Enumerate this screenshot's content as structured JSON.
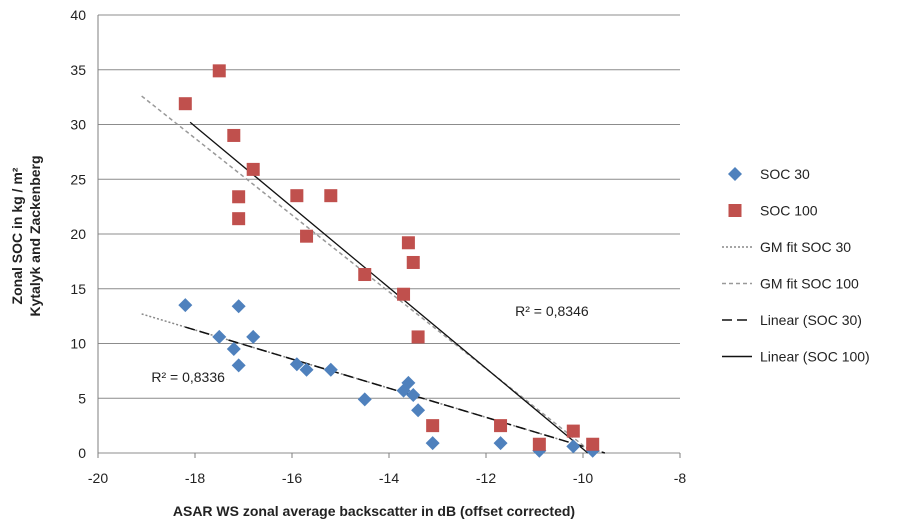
{
  "chart_data": {
    "type": "scatter",
    "title": "",
    "xlabel": "ASAR WS zonal average backscatter in dB (offset corrected)",
    "ylabel_lines": [
      "Zonal SOC in kg / m²",
      "Kytalyk and Zackenberg"
    ],
    "xlim": [
      -20,
      -8
    ],
    "ylim": [
      0,
      40
    ],
    "x_ticks": [
      -20,
      -18,
      -16,
      -14,
      -12,
      -10,
      -8
    ],
    "x_tick_labels": [
      "-20",
      "-18",
      "-16",
      "-14",
      "-12",
      "-10",
      "-8"
    ],
    "y_ticks": [
      0,
      5,
      10,
      15,
      20,
      25,
      30,
      35,
      40
    ],
    "y_tick_labels": [
      "0",
      "5",
      "10",
      "15",
      "20",
      "25",
      "30",
      "35",
      "40"
    ],
    "grid": "horizontal",
    "legend_position": "right",
    "series": [
      {
        "name": "SOC 30",
        "marker": "diamond",
        "color": "#4F81BD",
        "points": [
          [
            -18.2,
            13.5
          ],
          [
            -17.5,
            10.6
          ],
          [
            -17.2,
            9.5
          ],
          [
            -17.1,
            13.4
          ],
          [
            -17.1,
            8.0
          ],
          [
            -16.8,
            10.6
          ],
          [
            -15.9,
            8.1
          ],
          [
            -15.7,
            7.6
          ],
          [
            -15.2,
            7.6
          ],
          [
            -14.5,
            4.9
          ],
          [
            -13.7,
            5.7
          ],
          [
            -13.6,
            6.4
          ],
          [
            -13.5,
            5.3
          ],
          [
            -13.4,
            3.9
          ],
          [
            -13.1,
            0.9
          ],
          [
            -11.7,
            0.9
          ],
          [
            -10.9,
            0.2
          ],
          [
            -10.2,
            0.6
          ],
          [
            -9.8,
            0.2
          ]
        ]
      },
      {
        "name": "SOC 100",
        "marker": "square",
        "color": "#C0504D",
        "points": [
          [
            -18.2,
            31.9
          ],
          [
            -17.5,
            34.9
          ],
          [
            -17.2,
            29.0
          ],
          [
            -17.1,
            23.4
          ],
          [
            -17.1,
            21.4
          ],
          [
            -16.8,
            25.9
          ],
          [
            -15.9,
            23.5
          ],
          [
            -15.7,
            19.8
          ],
          [
            -15.2,
            23.5
          ],
          [
            -14.5,
            16.3
          ],
          [
            -13.7,
            14.5
          ],
          [
            -13.6,
            19.2
          ],
          [
            -13.5,
            17.4
          ],
          [
            -13.4,
            10.6
          ],
          [
            -13.1,
            2.5
          ],
          [
            -11.7,
            2.5
          ],
          [
            -10.9,
            0.8
          ],
          [
            -10.2,
            2.0
          ],
          [
            -9.8,
            0.8
          ]
        ]
      }
    ],
    "fit_lines": [
      {
        "name": "GM fit SOC 30",
        "style": "dotted",
        "color": "#888888",
        "x": [
          -19.1,
          -9.55
        ],
        "y": [
          12.7,
          0
        ]
      },
      {
        "name": "GM fit SOC 100",
        "style": "dashed",
        "color": "#999999",
        "x": [
          -19.1,
          -9.8
        ],
        "y": [
          32.6,
          0
        ]
      },
      {
        "name": "Linear (SOC 30)",
        "style": "longdash",
        "color": "#111111",
        "x": [
          -18.2,
          -9.55
        ],
        "y": [
          11.5,
          0
        ]
      },
      {
        "name": "Linear (SOC 100)",
        "style": "solid",
        "color": "#111111",
        "x": [
          -18.1,
          -9.9
        ],
        "y": [
          30.2,
          0
        ]
      }
    ],
    "annotations": [
      {
        "text": "R² = 0,8346",
        "x": -11.4,
        "y": 12.5
      },
      {
        "text": "R² = 0,8336",
        "x": -18.9,
        "y": 6.5
      }
    ]
  },
  "colors": {
    "grid": "#8C8C8C",
    "axis": "#7F7F7F"
  }
}
